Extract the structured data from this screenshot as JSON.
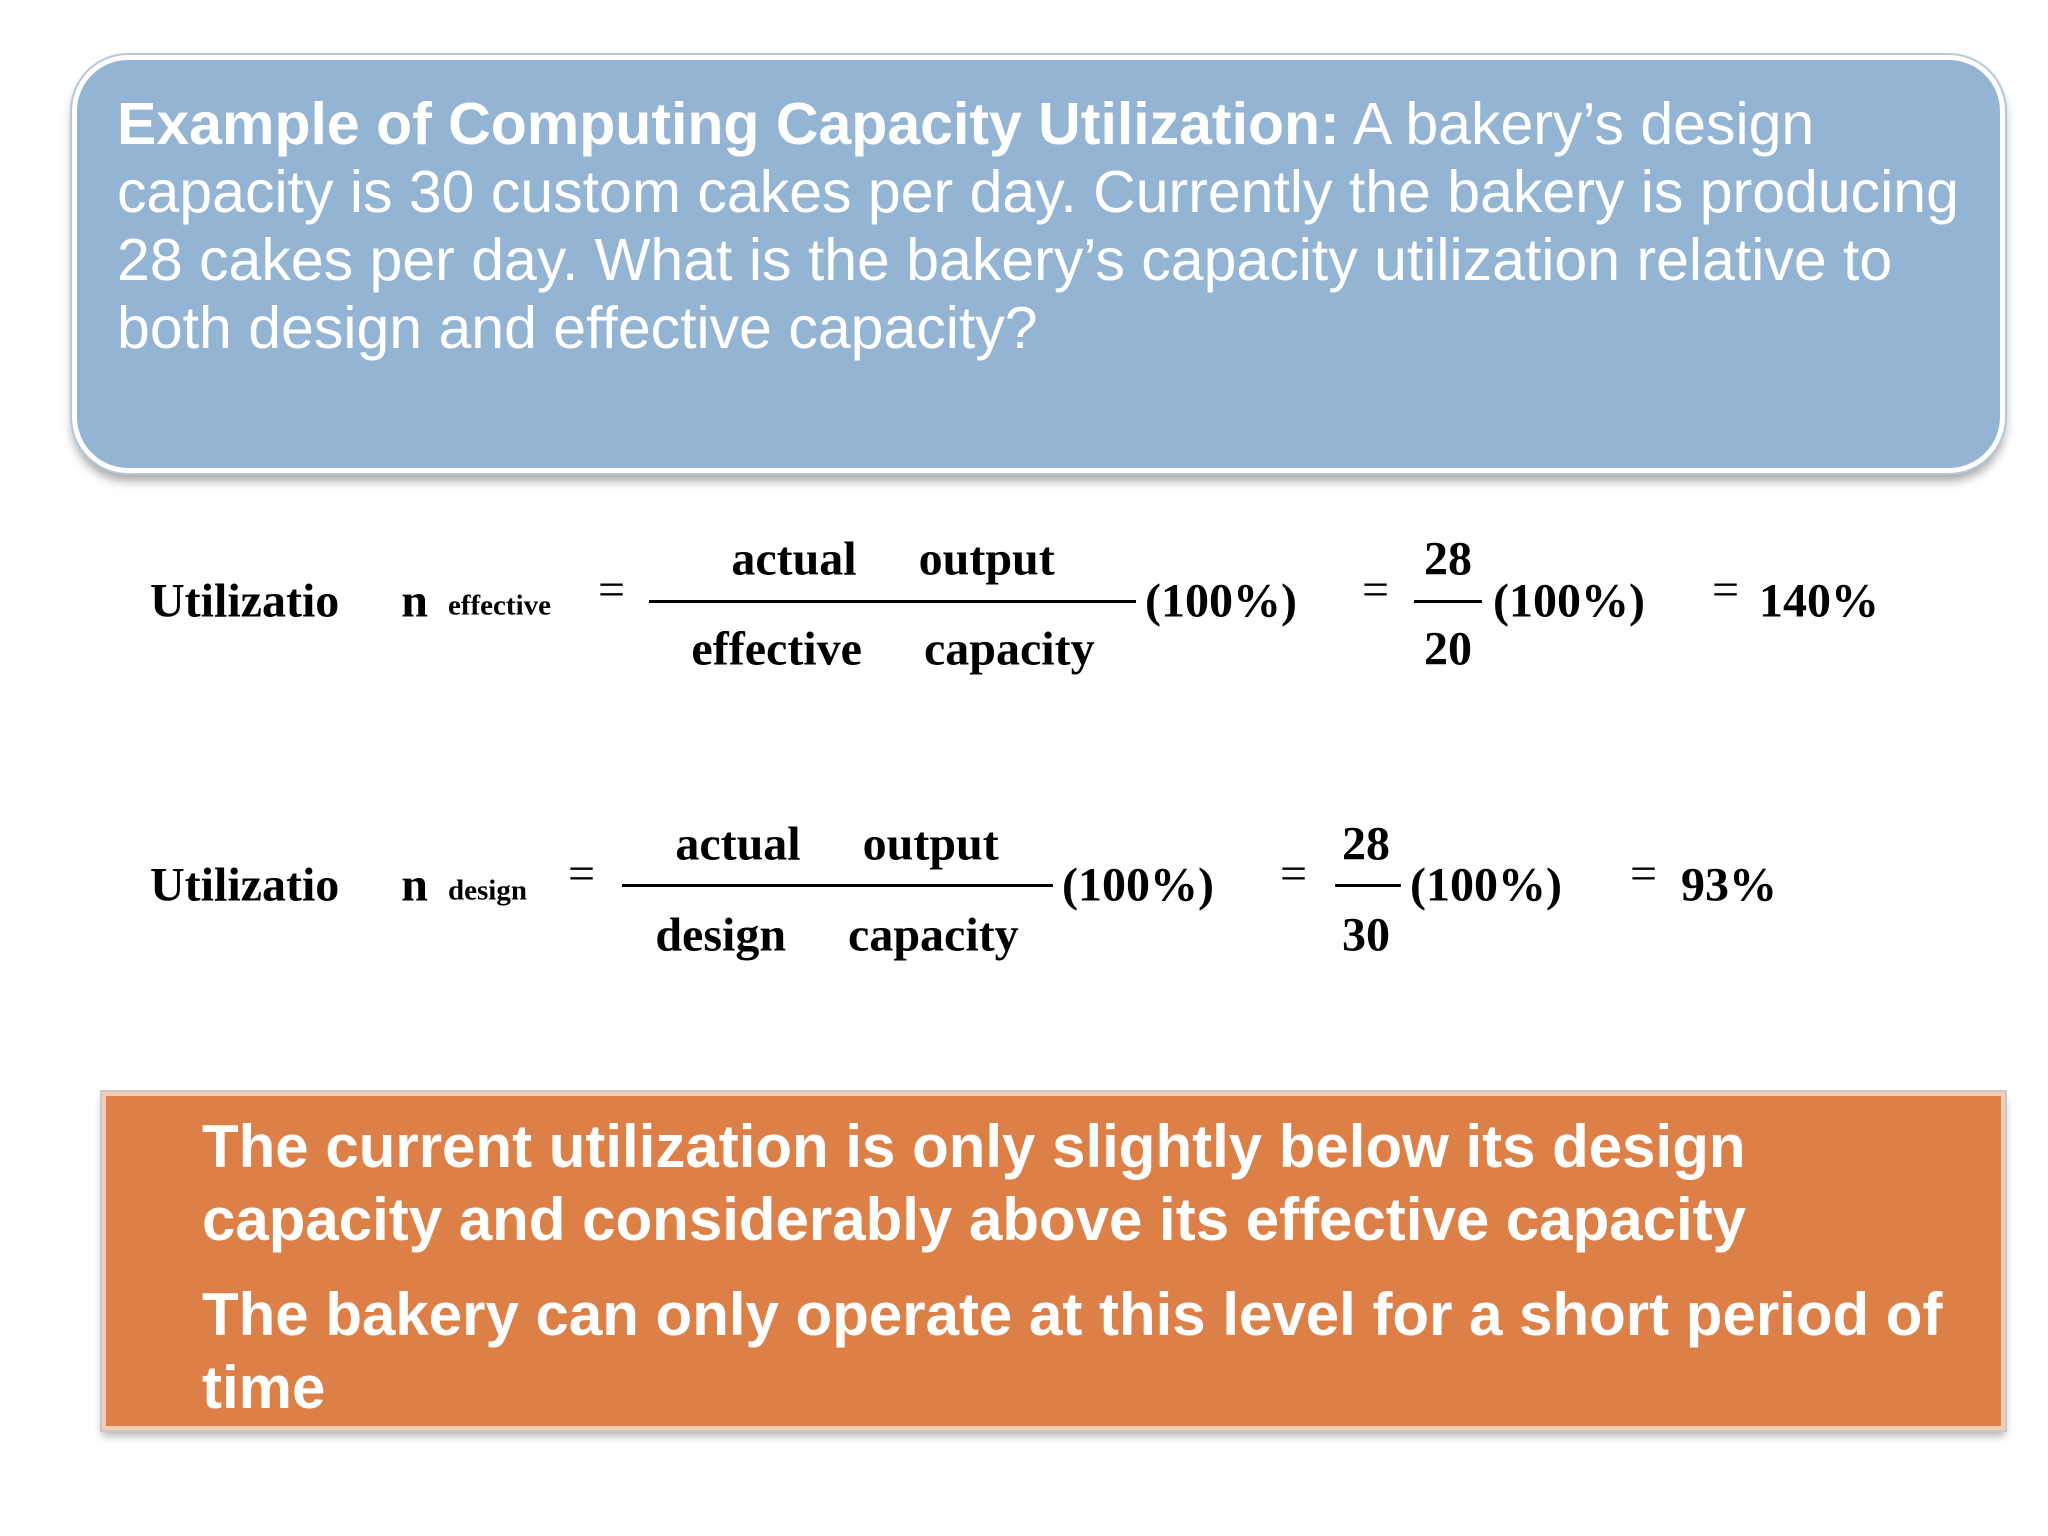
{
  "question": {
    "lead": "Example of Computing Capacity Utilization:",
    "text": "A bakery’s design capacity is 30 custom cakes per day. Currently the bakery is producing 28 cakes per day. What is the bakery’s capacity utilization relative to both design and effective capacity?"
  },
  "equals": "=",
  "formulas": [
    {
      "lhs": "Utilizatio n",
      "subscript": "effective",
      "numerator": "actual output",
      "denominator": "effective capacity",
      "factor": "(100%)",
      "num_value": "28",
      "den_value": "20",
      "result": "140%"
    },
    {
      "lhs": "Utilizatio n",
      "subscript": "design",
      "numerator": "actual output",
      "denominator": "design capacity",
      "factor": "(100%)",
      "num_value": "28",
      "den_value": "30",
      "result": "93%"
    }
  ],
  "conclusion": {
    "bullets": [
      "The current utilization is only slightly below its design capacity and considerably above its effective capacity",
      "The bakery can only operate at this level for a short period of time"
    ]
  }
}
